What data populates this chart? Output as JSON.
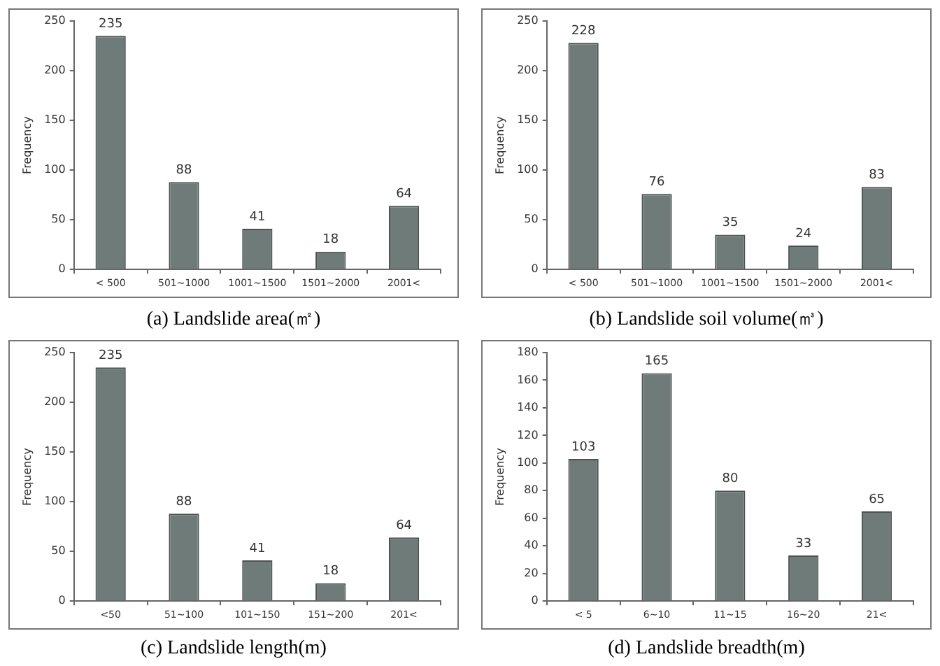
{
  "chart_data": [
    {
      "type": "bar",
      "title": "(a)  Landslide  area(㎡)",
      "ylabel": "Frequency",
      "categories": [
        "< 500",
        "501~1000",
        "1001~1500",
        "1501~2000",
        "2001<"
      ],
      "values": [
        235,
        88,
        41,
        18,
        64
      ],
      "color": "#6f7b78",
      "ylim": [
        0,
        250
      ],
      "yticks": [
        0,
        50,
        100,
        150,
        200,
        250
      ],
      "grid": false,
      "legend": false,
      "data_labels": true
    },
    {
      "type": "bar",
      "title": "(b)  Landslide  soil  volume(㎥)",
      "ylabel": "Frequency",
      "categories": [
        "< 500",
        "501~1000",
        "1001~1500",
        "1501~2000",
        "2001<"
      ],
      "values": [
        228,
        76,
        35,
        24,
        83
      ],
      "color": "#6f7b78",
      "ylim": [
        0,
        250
      ],
      "yticks": [
        0,
        50,
        100,
        150,
        200,
        250
      ],
      "grid": false,
      "legend": false,
      "data_labels": true
    },
    {
      "type": "bar",
      "title": "(c)  Landslide  length(m)",
      "ylabel": "Frequency",
      "categories": [
        "<50",
        "51~100",
        "101~150",
        "151~200",
        "201<"
      ],
      "values": [
        235,
        88,
        41,
        18,
        64
      ],
      "color": "#6f7b78",
      "ylim": [
        0,
        250
      ],
      "yticks": [
        0,
        50,
        100,
        150,
        200,
        250
      ],
      "grid": false,
      "legend": false,
      "data_labels": true
    },
    {
      "type": "bar",
      "title": "(d)  Landslide  breadth(m)",
      "ylabel": "Frequency",
      "categories": [
        "< 5",
        "6~10",
        "11~15",
        "16~20",
        "21<"
      ],
      "values": [
        103,
        165,
        80,
        33,
        65
      ],
      "color": "#6f7b78",
      "ylim": [
        0,
        180
      ],
      "yticks": [
        0,
        20,
        40,
        60,
        80,
        100,
        120,
        140,
        160,
        180
      ],
      "grid": false,
      "legend": false,
      "data_labels": true
    }
  ]
}
